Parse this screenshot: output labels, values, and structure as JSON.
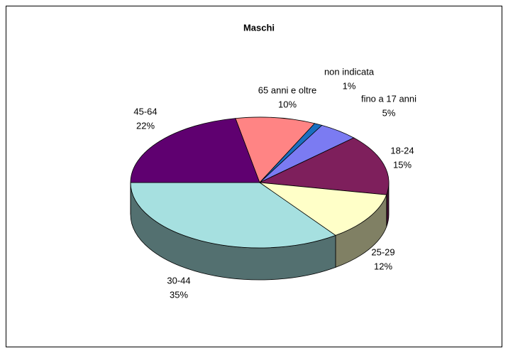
{
  "chart_data": {
    "type": "pie3d",
    "title": "Maschi",
    "categories": [
      "fino a 17 anni",
      "18-24",
      "25-29",
      "30-44",
      "45-64",
      "65 anni  e oltre",
      "non indicata"
    ],
    "values": [
      5,
      15,
      12,
      35,
      22,
      10,
      1
    ],
    "value_labels": [
      "5%",
      "15%",
      "12%",
      "35%",
      "22%",
      "10%",
      "1%"
    ],
    "colors": [
      "#7b7bf2",
      "#7e1f5c",
      "#ffffc8",
      "#a6e0e0",
      "#5f0070",
      "#ff8484",
      "#1a6fc0"
    ]
  }
}
